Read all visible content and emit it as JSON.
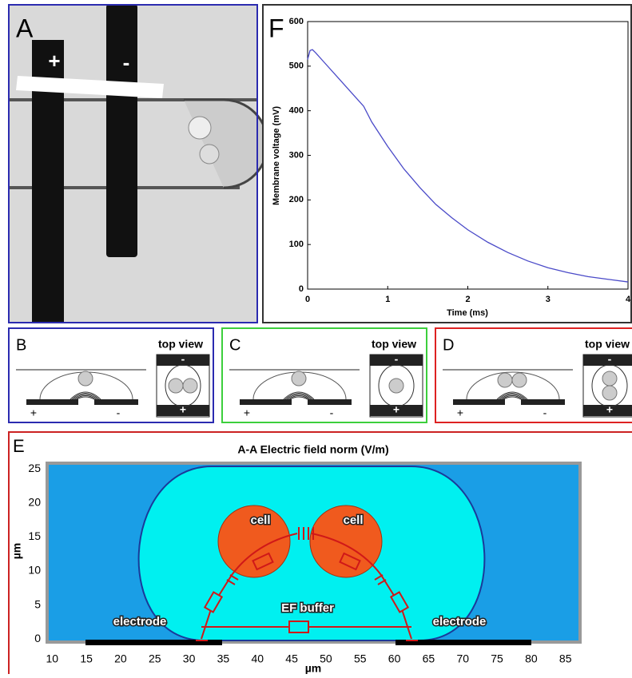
{
  "panels": {
    "A": {
      "label": "A",
      "plus": "+",
      "minus": "-"
    },
    "B": {
      "label": "B",
      "top_view": "top view",
      "plus": "+",
      "minus": "-",
      "top_plus": "+",
      "top_minus": "-"
    },
    "C": {
      "label": "C",
      "top_view": "top view",
      "plus": "+",
      "minus": "-",
      "top_plus": "+",
      "top_minus": "-"
    },
    "D": {
      "label": "D",
      "top_view": "top view",
      "plus": "+",
      "minus": "-",
      "top_plus": "+",
      "top_minus": "-"
    },
    "E": {
      "label": "E"
    },
    "F": {
      "label": "F"
    }
  },
  "chart_data": [
    {
      "type": "line",
      "x_label": "Time (ms)",
      "y_label": "Membrane voltage (mV)",
      "color": "#4a4ac8",
      "x": [
        0,
        0.03,
        0.06,
        0.1,
        0.2,
        0.4,
        0.6,
        0.7,
        0.8,
        1,
        1.2,
        1.4,
        1.6,
        1.8,
        2,
        2.25,
        2.5,
        2.75,
        3,
        3.25,
        3.5,
        3.75,
        4
      ],
      "values": [
        515,
        535,
        537,
        530,
        510,
        470,
        430,
        410,
        375,
        320,
        270,
        228,
        190,
        160,
        133,
        105,
        82,
        63,
        48,
        37,
        28,
        22,
        16
      ],
      "xlim": [
        0,
        4
      ],
      "ylim": [
        0,
        600
      ],
      "xticks": [
        0,
        1,
        2,
        3,
        4
      ],
      "yticks": [
        0,
        100,
        200,
        300,
        400,
        500,
        600
      ]
    },
    {
      "type": "field",
      "title": "A-A Electric field norm (V/m)",
      "x_label": "µm",
      "y_label": "µm",
      "xlim": [
        9.5,
        86.9
      ],
      "ylim": [
        -0.2,
        25.6
      ],
      "xticks": [
        10,
        15,
        20,
        25,
        30,
        35,
        40,
        45,
        50,
        55,
        60,
        65,
        70,
        75,
        80,
        85
      ],
      "yticks": [
        0,
        5,
        10,
        15,
        20,
        25
      ],
      "annotations": [
        "cell",
        "cell",
        "EF buffer",
        "electrode",
        "electrode"
      ]
    }
  ]
}
